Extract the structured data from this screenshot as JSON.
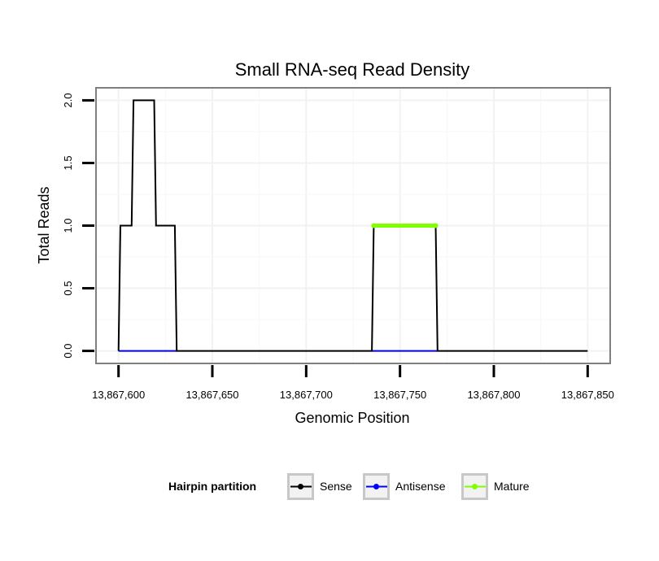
{
  "chart_data": {
    "type": "line",
    "title": "Small RNA-seq Read Density",
    "xlabel": "Genomic Position",
    "ylabel": "Total Reads",
    "xlim": [
      13867588,
      13867862
    ],
    "ylim": [
      -0.1,
      2.1
    ],
    "x_ticks": [
      {
        "value": 13867600,
        "label": "13,867,600"
      },
      {
        "value": 13867650,
        "label": "13,867,650"
      },
      {
        "value": 13867700,
        "label": "13,867,700"
      },
      {
        "value": 13867750,
        "label": "13,867,750"
      },
      {
        "value": 13867800,
        "label": "13,867,800"
      },
      {
        "value": 13867850,
        "label": "13,867,850"
      }
    ],
    "y_ticks": [
      {
        "value": 0.0,
        "label": "0.0"
      },
      {
        "value": 0.5,
        "label": "0.5"
      },
      {
        "value": 1.0,
        "label": "1.0"
      },
      {
        "value": 1.5,
        "label": "1.5"
      },
      {
        "value": 2.0,
        "label": "2.0"
      }
    ],
    "grid": true,
    "series": [
      {
        "name": "Sense",
        "color": "#000000",
        "x": [
          13867600,
          13867601,
          13867607,
          13867608,
          13867619,
          13867620,
          13867630,
          13867631,
          13867735,
          13867736,
          13867769,
          13867770,
          13867850
        ],
        "y": [
          0,
          1,
          1,
          2,
          2,
          1,
          1,
          0,
          0,
          1,
          1,
          0,
          0
        ]
      },
      {
        "name": "Antisense",
        "color": "#0000ff",
        "x": [
          13867600,
          13867631,
          13867735,
          13867770
        ],
        "y": [
          0,
          0,
          0,
          0
        ],
        "segments": [
          [
            0,
            1
          ],
          [
            2,
            3
          ]
        ]
      },
      {
        "name": "Mature",
        "color": "#7fff00",
        "x": [
          13867736,
          13867769
        ],
        "y": [
          1,
          1
        ]
      }
    ],
    "legend": {
      "position": "bottom",
      "title": "Hairpin partition",
      "entries": [
        {
          "label": "Sense",
          "color": "#000000"
        },
        {
          "label": "Antisense",
          "color": "#0000ff"
        },
        {
          "label": "Mature",
          "color": "#7fff00"
        }
      ]
    }
  }
}
